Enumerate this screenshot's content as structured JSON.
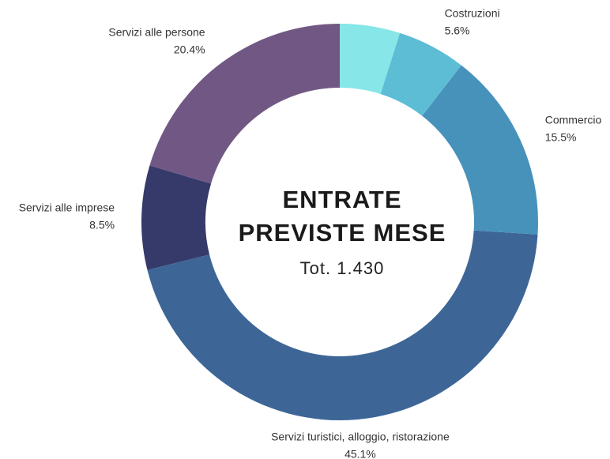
{
  "chart_data": {
    "type": "donut",
    "center_title": [
      "ENTRATE",
      "PREVISTE MESE"
    ],
    "center_subtitle": "Tot.  1.430",
    "categories": [
      null,
      "Costruzioni",
      "Commercio",
      "Servizi turistici, alloggio, ristorazione",
      "Servizi alle imprese",
      "Servizi alle persone"
    ],
    "values": [
      4.9,
      5.6,
      15.5,
      45.1,
      8.5,
      20.4
    ],
    "value_labels": [
      null,
      "5.6%",
      "15.5%",
      "45.1%",
      "8.5%",
      "20.4%"
    ],
    "colors": [
      "#86e6e8",
      "#5dbdd5",
      "#4792bb",
      "#3d6697",
      "#353a6b",
      "#715884"
    ]
  }
}
